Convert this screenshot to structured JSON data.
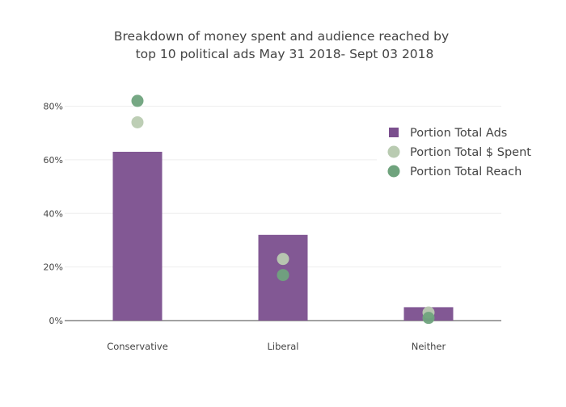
{
  "chart_data": {
    "type": "bar",
    "title_lines": [
      "Breakdown of money spent and audience reached by",
      "top 10 political ads May 31 2018- Sept 03 2018"
    ],
    "categories": [
      "Conservative",
      "Liberal",
      "Neither"
    ],
    "ylim": [
      0,
      0.88
    ],
    "yticks": [
      0,
      0.2,
      0.4,
      0.6,
      0.8
    ],
    "ytick_labels": [
      "0%",
      "20%",
      "40%",
      "60%",
      "80%"
    ],
    "grid": true,
    "legend_placement": "right",
    "series": [
      {
        "name": "Portion Total Ads",
        "kind": "bar",
        "color": "#7b4f8e",
        "values": [
          0.63,
          0.32,
          0.05
        ]
      },
      {
        "name": "Portion Total $ Spent",
        "kind": "scatter",
        "color": "#b9cbb1",
        "values": [
          0.74,
          0.23,
          0.03
        ]
      },
      {
        "name": "Portion Total Reach",
        "kind": "scatter",
        "color": "#6fa37d",
        "values": [
          0.82,
          0.17,
          0.01
        ]
      }
    ]
  }
}
